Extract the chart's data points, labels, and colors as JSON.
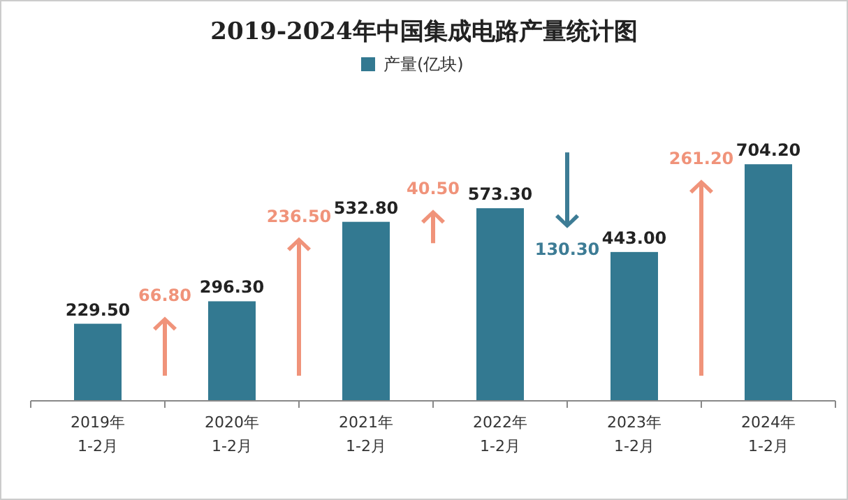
{
  "chart_data": {
    "type": "bar",
    "title": "2019-2024年中国集成电路产量统计图",
    "categories": [
      "2019年 1-2月",
      "2020年 1-2月",
      "2021年 1-2月",
      "2022年 1-2月",
      "2023年 1-2月",
      "2024年 1-2月"
    ],
    "series": [
      {
        "name": "产量(亿块)",
        "color": "#337991",
        "values": [
          229.5,
          296.3,
          532.8,
          573.3,
          443.0,
          704.2
        ],
        "value_labels": [
          "229.50",
          "296.30",
          "532.80",
          "573.30",
          "443.00",
          "704.20"
        ]
      }
    ],
    "annotations": [
      "66.80",
      "236.50",
      "40.50",
      "130.30",
      "261.20"
    ],
    "legend": "top"
  }
}
